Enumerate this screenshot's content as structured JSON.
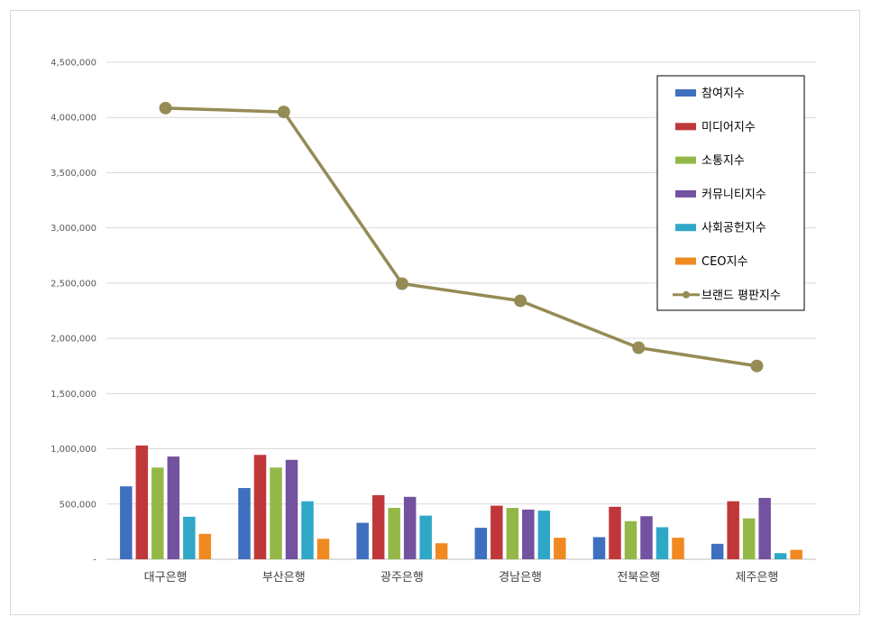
{
  "chart_data": {
    "type": "bar",
    "categories": [
      "대구은행",
      "부산은행",
      "광주은행",
      "경남은행",
      "전북은행",
      "제주은행"
    ],
    "ylim": [
      0,
      4500000
    ],
    "yticks": [
      "-",
      "500,000",
      "1,000,000",
      "1,500,000",
      "2,000,000",
      "2,500,000",
      "3,000,000",
      "3,500,000",
      "4,000,000",
      "4,500,000"
    ],
    "ytick_values": [
      0,
      500000,
      1000000,
      1500000,
      2000000,
      2500000,
      3000000,
      3500000,
      4000000,
      4500000
    ],
    "grid": true,
    "legend_position": "top-right",
    "series": [
      {
        "name": "참여지수",
        "type": "bar",
        "color": "#3f6fbf",
        "values": [
          660000,
          645000,
          330000,
          285000,
          200000,
          140000
        ]
      },
      {
        "name": "미디어지수",
        "type": "bar",
        "color": "#c0373a",
        "values": [
          1030000,
          945000,
          580000,
          485000,
          475000,
          525000
        ]
      },
      {
        "name": "소통지수",
        "type": "bar",
        "color": "#93b847",
        "values": [
          830000,
          830000,
          465000,
          465000,
          345000,
          370000
        ]
      },
      {
        "name": "커뮤니티지수",
        "type": "bar",
        "color": "#7352a0",
        "values": [
          930000,
          900000,
          565000,
          450000,
          390000,
          555000
        ]
      },
      {
        "name": "사회공헌지수",
        "type": "bar",
        "color": "#2fa8c8",
        "values": [
          385000,
          525000,
          395000,
          440000,
          290000,
          55000
        ]
      },
      {
        "name": "CEO지수",
        "type": "bar",
        "color": "#f08a20",
        "values": [
          230000,
          185000,
          145000,
          195000,
          195000,
          85000
        ]
      },
      {
        "name": "브랜드 평판지수",
        "type": "line",
        "color": "#958b55",
        "values": [
          4085000,
          4050000,
          2495000,
          2340000,
          1915000,
          1750000
        ]
      }
    ]
  }
}
